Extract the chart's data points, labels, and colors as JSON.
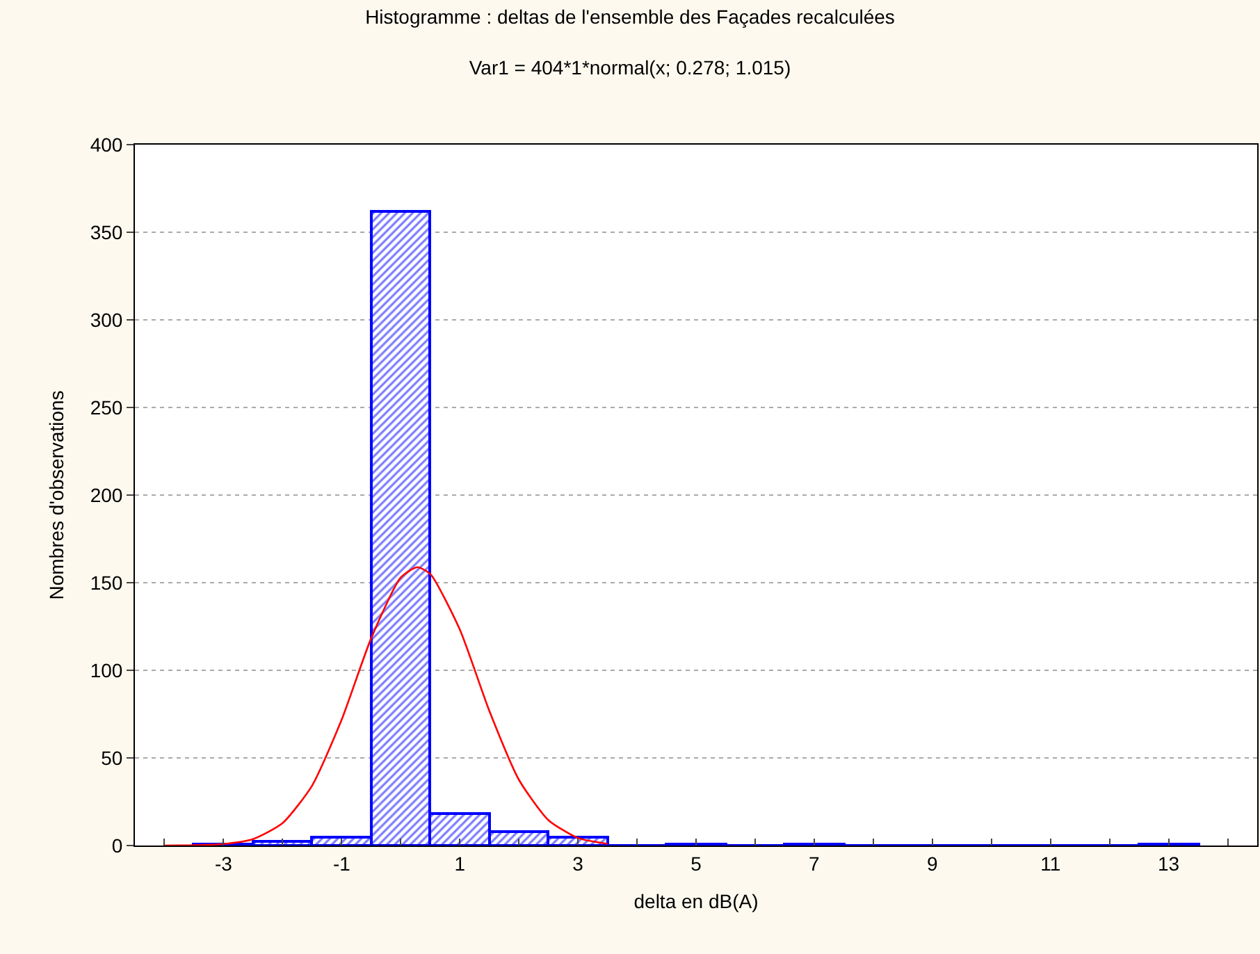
{
  "chart_data": {
    "type": "histogram",
    "title": "Histogramme : deltas de l'ensemble des Façades recalculées",
    "subtitle": "Var1 = 404*1*normal(x; 0.278; 1.015)",
    "xlabel": "delta en dB(A)",
    "ylabel": "Nombres d'observations",
    "bins": [
      -3.5,
      -2.5,
      -1.5,
      -0.5,
      0.5,
      1.5,
      2.5,
      3.5,
      4.5,
      5.5,
      6.5,
      7.5,
      8.5,
      9.5,
      10.5,
      11.5,
      12.5,
      13.5
    ],
    "values": [
      1,
      2,
      5,
      362,
      18,
      8,
      5,
      0,
      1,
      0,
      1,
      0,
      0,
      0,
      0,
      0,
      1
    ],
    "color": "#0000ff",
    "series": [
      {
        "type": "line",
        "color": "#ff0000",
        "x": [
          -4,
          -3.5,
          -3,
          -2.5,
          -2,
          -1.5,
          -1,
          -0.5,
          0,
          0.278,
          0.5,
          1,
          1.5,
          2,
          2.5,
          3,
          3.5
        ],
        "values": [
          0,
          0.2,
          0.9,
          3.7,
          12.8,
          34.2,
          71.8,
          118.3,
          152.9,
          158.8,
          155.0,
          123.3,
          76.9,
          37.6,
          14.5,
          4.3,
          1.0
        ]
      }
    ],
    "xlim": [
      -4.5,
      14.5
    ],
    "xticks": [
      {
        "value": -4,
        "label": null
      },
      -3,
      {
        "value": -2,
        "label": null
      },
      -1,
      {
        "value": 0,
        "label": null
      },
      1,
      {
        "value": 2,
        "label": null
      },
      3,
      {
        "value": 4,
        "label": null
      },
      5,
      {
        "value": 6,
        "label": null
      },
      7,
      {
        "value": 8,
        "label": null
      },
      9,
      {
        "value": 10,
        "label": null
      },
      11,
      {
        "value": 12,
        "label": null
      },
      13,
      {
        "value": 14,
        "label": null
      }
    ],
    "ylim": [
      0,
      400
    ],
    "yticks": [
      0,
      50,
      100,
      150,
      200,
      250,
      300,
      350,
      400
    ],
    "grid": "y"
  }
}
